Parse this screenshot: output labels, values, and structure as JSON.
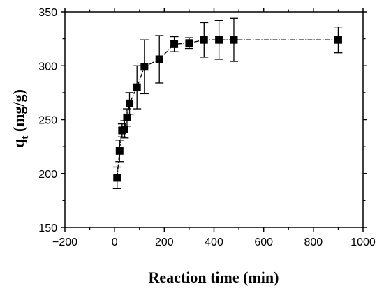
{
  "chart_data": {
    "type": "scatter",
    "title": "",
    "xlabel": "Reaction time (min)",
    "ylabel": "q",
    "ylabel_subscript": "t",
    "ylabel_unit": " (mg/g)",
    "xlim": [
      -200,
      1000
    ],
    "ylim": [
      150,
      350
    ],
    "xticks": [
      -200,
      0,
      200,
      400,
      600,
      800,
      1000
    ],
    "yticks": [
      150,
      200,
      250,
      300,
      350
    ],
    "grid": false,
    "line_style": "dash-dot",
    "marker": "square",
    "color": "#000000",
    "series": [
      {
        "points": [
          {
            "x": 10,
            "y": 196,
            "err": 10
          },
          {
            "x": 20,
            "y": 221,
            "err": 10
          },
          {
            "x": 30,
            "y": 240,
            "err": 6
          },
          {
            "x": 40,
            "y": 241,
            "err": 8
          },
          {
            "x": 50,
            "y": 252,
            "err": 8
          },
          {
            "x": 60,
            "y": 265,
            "err": 10
          },
          {
            "x": 90,
            "y": 280,
            "err": 20
          },
          {
            "x": 120,
            "y": 299,
            "err": 25
          },
          {
            "x": 180,
            "y": 306,
            "err": 22
          },
          {
            "x": 240,
            "y": 320,
            "err": 7
          },
          {
            "x": 300,
            "y": 321,
            "err": 5
          },
          {
            "x": 360,
            "y": 324,
            "err": 16
          },
          {
            "x": 420,
            "y": 324,
            "err": 18
          },
          {
            "x": 480,
            "y": 324,
            "err": 20
          },
          {
            "x": 900,
            "y": 324,
            "err": 12
          }
        ]
      }
    ]
  }
}
